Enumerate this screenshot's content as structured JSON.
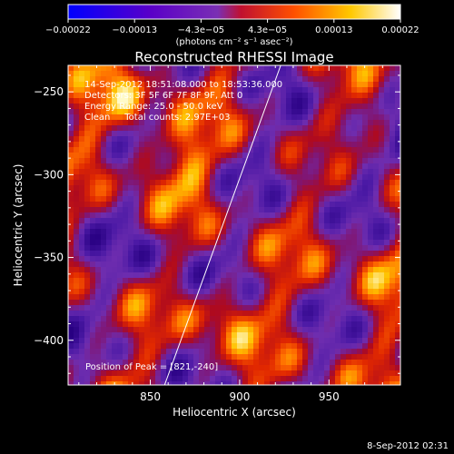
{
  "chart_data": {
    "type": "heatmap",
    "title": "Reconstructed RHESSI Image",
    "xlabel": "Heliocentric X (arcsec)",
    "ylabel": "Heliocentric Y (arcsec)",
    "xlim": [
      804,
      990
    ],
    "ylim": [
      -427,
      -234
    ],
    "x_ticks": [
      850,
      900,
      950
    ],
    "x_tick_labels": [
      "850",
      "900",
      "950"
    ],
    "y_ticks": [
      -250,
      -300,
      -350,
      -400
    ],
    "y_tick_labels": [
      "−250",
      "−300",
      "−350",
      "−400"
    ],
    "colorbar": {
      "range": [
        -0.00022,
        0.00022
      ],
      "tick_labels": [
        "−0.00022",
        "−0.00013",
        "−4.3e−05",
        "4.3e−05",
        "0.00013",
        "0.00022"
      ],
      "units": "(photons cm⁻² s⁻¹ asec⁻²)"
    },
    "annotations": [
      "14-Sep-2012 18:51:08.000 to 18:53:36.000",
      "Detectors: 3F 5F 6F 7F 8F 9F, Att 0",
      "Energy Range: 25.0 - 50.0 keV",
      "Clean     Total counts: 2.97E+03"
    ],
    "peak_label": "Position of Peak = [821,-240]",
    "limb_line": {
      "x": [
        858,
        923
      ],
      "y": [
        -427,
        -234
      ]
    },
    "grid": false
  },
  "footer": {
    "timestamp": "8-Sep-2012 02:31"
  },
  "colors": {
    "frame": "#ffffff",
    "background": "#000000"
  }
}
